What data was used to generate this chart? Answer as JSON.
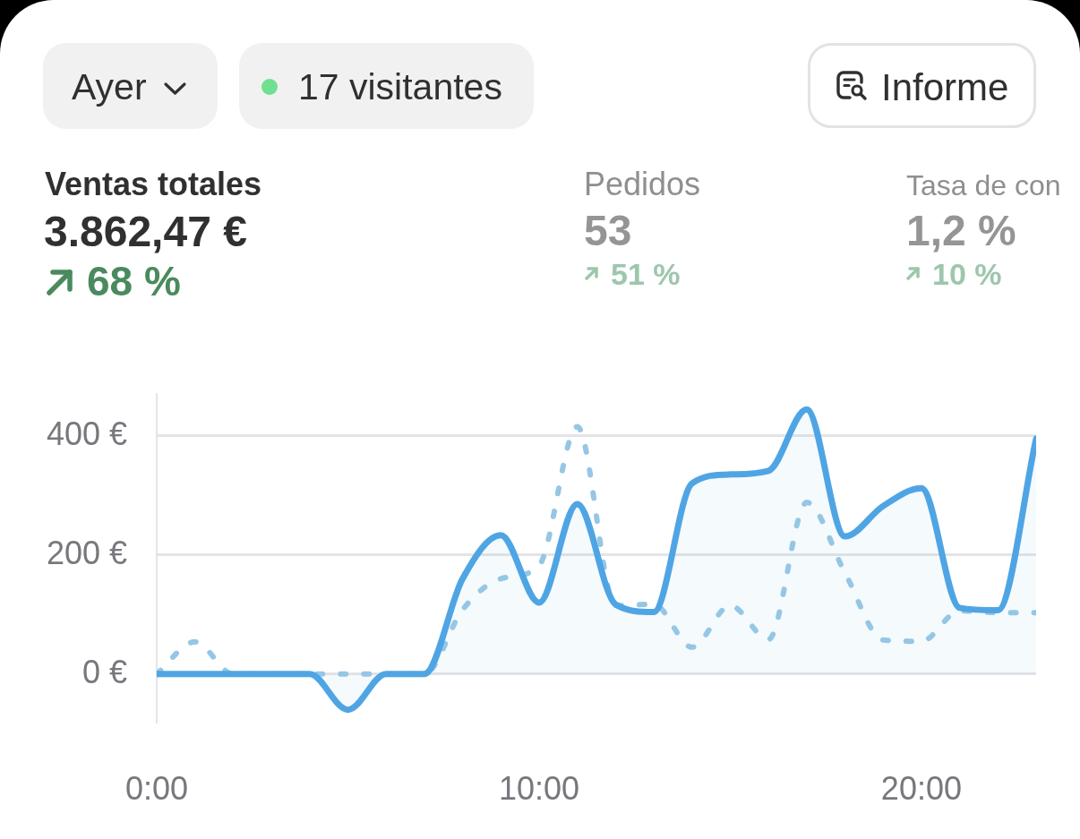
{
  "chart_data": {
    "type": "line",
    "title": "Ventas totales",
    "subtitle": "3.862,47 €",
    "annotations": [
      "Ayer",
      "17 visitantes",
      "Informe",
      "68 %",
      "Pedidos",
      "53",
      "51 %",
      "Tasa de con",
      "1,2 %",
      "10 %"
    ],
    "x": [
      0,
      1,
      2,
      3,
      4,
      5,
      6,
      7,
      8,
      9,
      10,
      11,
      12,
      13,
      14,
      15,
      16,
      17,
      18,
      19,
      20,
      21,
      22,
      23
    ],
    "xlim": [
      0,
      23
    ],
    "xticks": [
      {
        "value": 0,
        "label": "0:00"
      },
      {
        "value": 10,
        "label": "10:00"
      },
      {
        "value": 20,
        "label": "20:00"
      }
    ],
    "ylim": [
      -80,
      470
    ],
    "yticks": [
      {
        "value": 0,
        "label": "0 €"
      },
      {
        "value": 200,
        "label": "200 €"
      },
      {
        "value": 400,
        "label": "400 €"
      }
    ],
    "grid": "y",
    "marker": "none",
    "series": [
      {
        "type": "area",
        "color": "#4fa5e4",
        "values": [
          0,
          0,
          0,
          0,
          0,
          -60,
          0,
          0,
          160,
          233,
          120,
          285,
          117,
          104,
          320,
          335,
          341,
          444,
          231,
          282,
          312,
          111,
          107,
          395
        ]
      },
      {
        "type": "line",
        "line_style": "dashed",
        "color": "#95c7e5",
        "values": [
          0,
          54,
          0,
          0,
          0,
          0,
          0,
          0,
          108,
          160,
          182,
          415,
          115,
          117,
          45,
          115,
          58,
          288,
          170,
          57,
          55,
          106,
          103,
          103
        ]
      }
    ]
  }
}
